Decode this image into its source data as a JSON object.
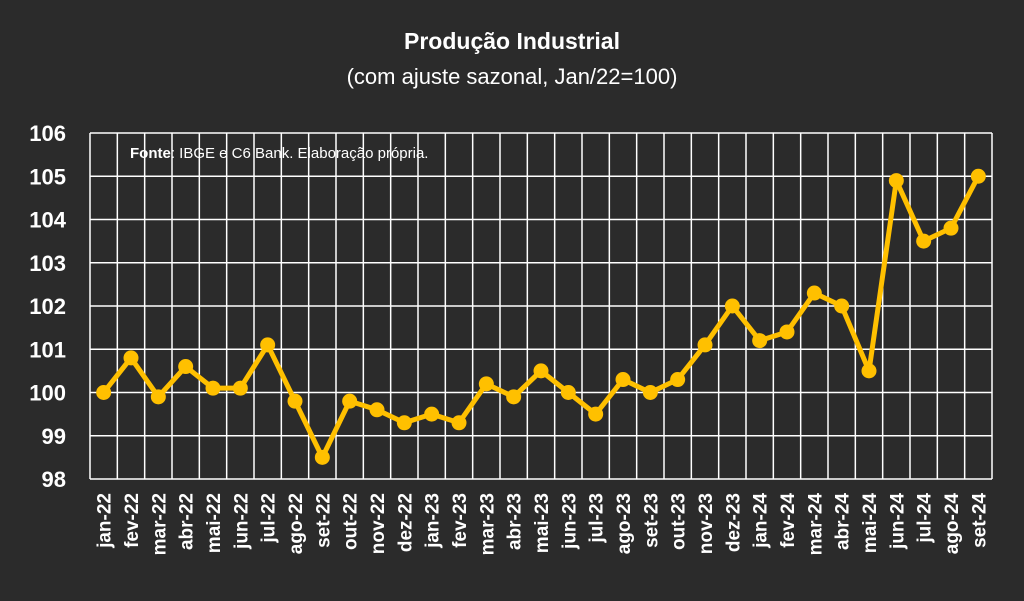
{
  "chart_data": {
    "type": "line",
    "title": "Produção Industrial",
    "subtitle": "(com ajuste sazonal, Jan/22=100)",
    "source_label": "Fonte",
    "source_text": ": IBGE e C6 Bank. Elaboração própria.",
    "xlabel": "",
    "ylabel": "",
    "ylim": [
      98,
      106
    ],
    "yticks": [
      98,
      99,
      100,
      101,
      102,
      103,
      104,
      105,
      106
    ],
    "grid": true,
    "categories": [
      "jan-22",
      "fev-22",
      "mar-22",
      "abr-22",
      "mai-22",
      "jun-22",
      "jul-22",
      "ago-22",
      "set-22",
      "out-22",
      "nov-22",
      "dez-22",
      "jan-23",
      "fev-23",
      "mar-23",
      "abr-23",
      "mai-23",
      "jun-23",
      "jul-23",
      "ago-23",
      "set-23",
      "out-23",
      "nov-23",
      "dez-23",
      "jan-24",
      "fev-24",
      "mar-24",
      "abr-24",
      "mai-24",
      "jun-24",
      "jul-24",
      "ago-24",
      "set-24"
    ],
    "series": [
      {
        "values": [
          100.0,
          100.8,
          99.9,
          100.6,
          100.1,
          100.1,
          101.1,
          99.8,
          98.5,
          99.8,
          99.6,
          99.3,
          99.5,
          99.3,
          100.2,
          99.9,
          100.5,
          100.0,
          99.5,
          100.3,
          100.0,
          100.3,
          101.1,
          102.0,
          101.2,
          101.4,
          102.3,
          102.0,
          100.5,
          104.9,
          103.5,
          103.8,
          105.0
        ],
        "color": "#ffc000"
      }
    ]
  },
  "colors": {
    "background": "#2b2b2b",
    "grid": "#ffffff",
    "line": "#ffc000",
    "text": "#ffffff"
  }
}
